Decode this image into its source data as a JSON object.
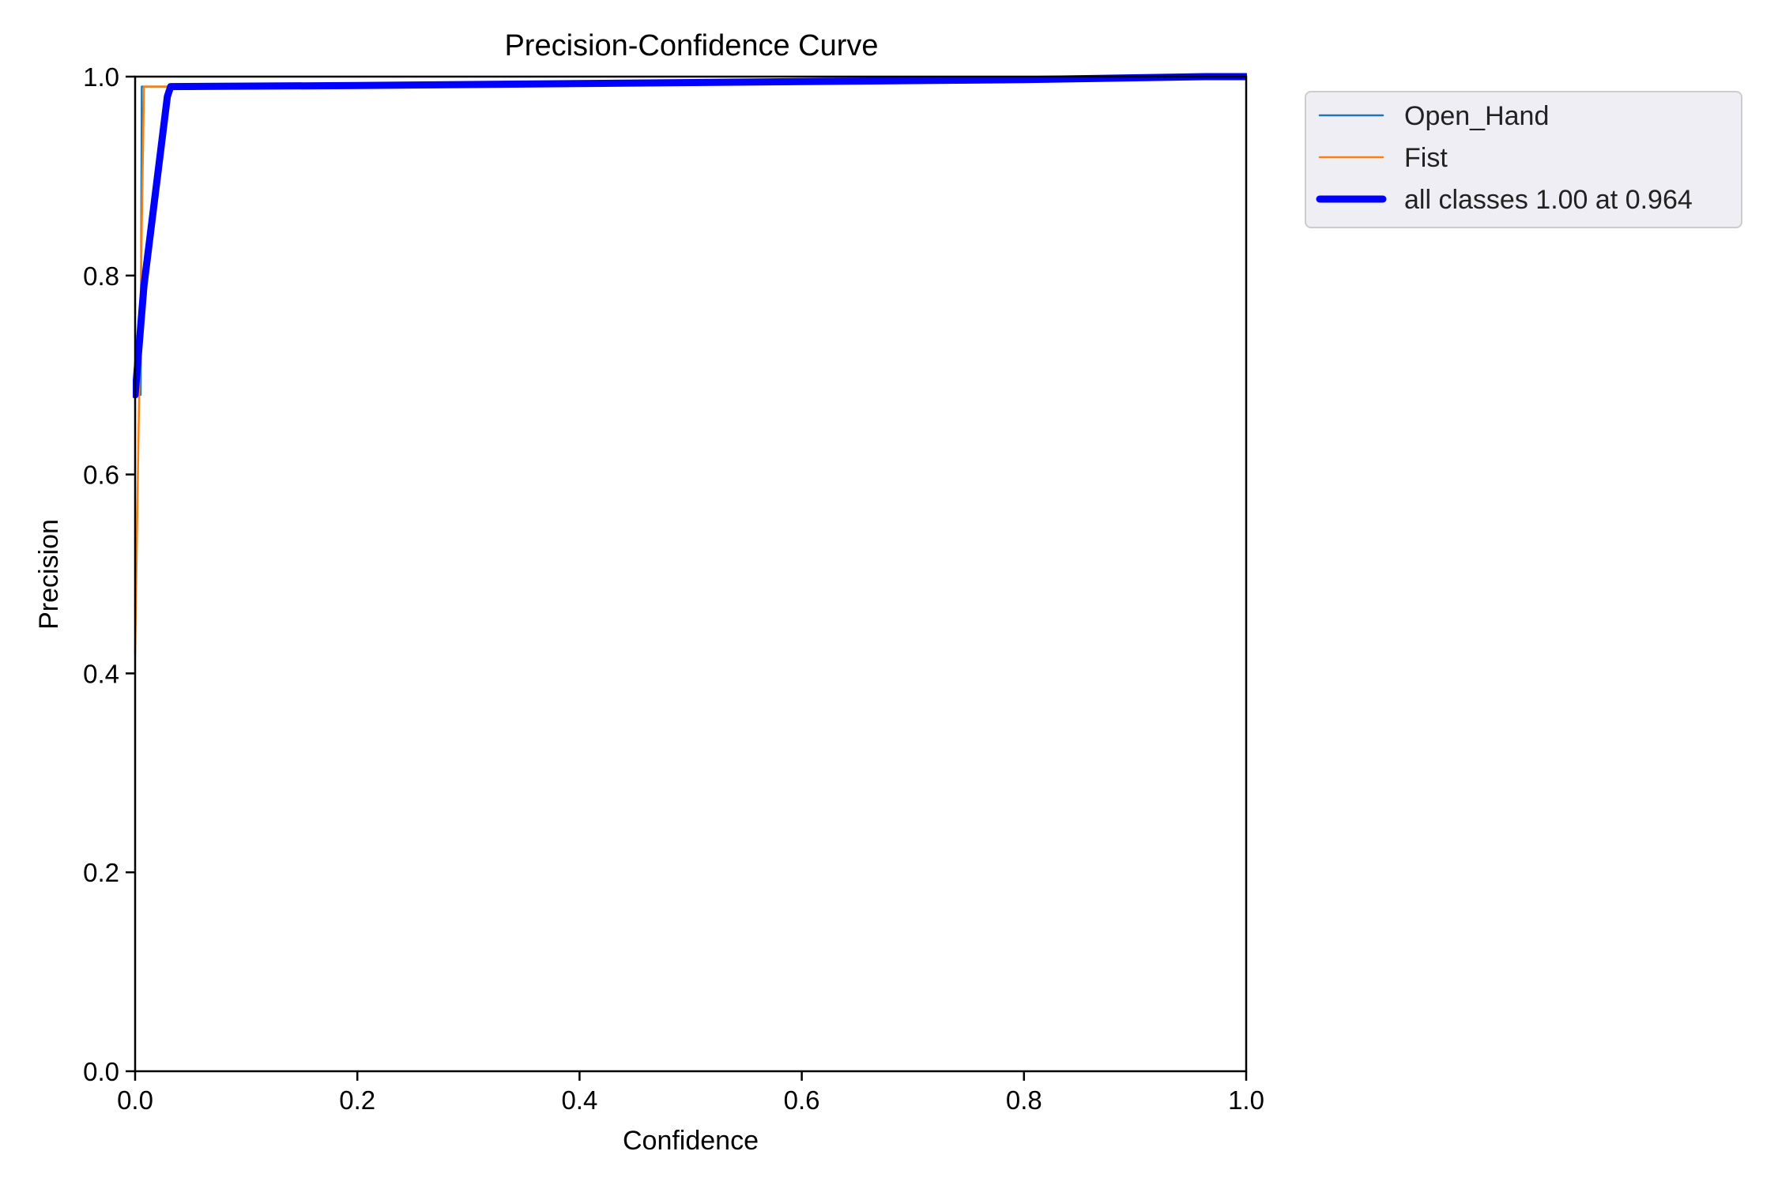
{
  "chart_data": {
    "type": "line",
    "title": "Precision-Confidence Curve",
    "xlabel": "Confidence",
    "ylabel": "Precision",
    "xlim": [
      0,
      1
    ],
    "ylim": [
      0,
      1
    ],
    "xticks": [
      "0.0",
      "0.2",
      "0.4",
      "0.6",
      "0.8",
      "1.0"
    ],
    "yticks": [
      "0.0",
      "0.2",
      "0.4",
      "0.6",
      "0.8",
      "1.0"
    ],
    "grid": false,
    "legend_position": "outside-top-right",
    "series": [
      {
        "name": "Open_Hand",
        "color": "#1f77b4",
        "linewidth": "thin",
        "x": [
          0.0,
          0.005,
          0.006,
          0.03,
          0.2,
          0.4,
          0.6,
          0.8,
          0.95,
          1.0
        ],
        "y": [
          0.68,
          0.68,
          0.99,
          0.99,
          0.991,
          0.993,
          0.995,
          0.997,
          0.999,
          1.0
        ]
      },
      {
        "name": "Fist",
        "color": "#ff7f0e",
        "linewidth": "thin",
        "x": [
          0.0,
          0.008,
          0.03,
          0.2,
          0.4,
          0.6,
          0.8,
          0.95,
          1.0
        ],
        "y": [
          0.42,
          0.99,
          0.99,
          0.991,
          0.993,
          0.995,
          0.997,
          0.999,
          1.0
        ]
      },
      {
        "name": "all classes 1.00 at 0.964",
        "color": "#0000ff",
        "linewidth": "thick",
        "x": [
          0.0,
          0.008,
          0.029,
          0.032,
          0.2,
          0.4,
          0.6,
          0.8,
          0.964,
          1.0
        ],
        "y": [
          0.68,
          0.79,
          0.98,
          0.99,
          0.991,
          0.993,
          0.995,
          0.997,
          1.0,
          1.0
        ]
      }
    ]
  }
}
